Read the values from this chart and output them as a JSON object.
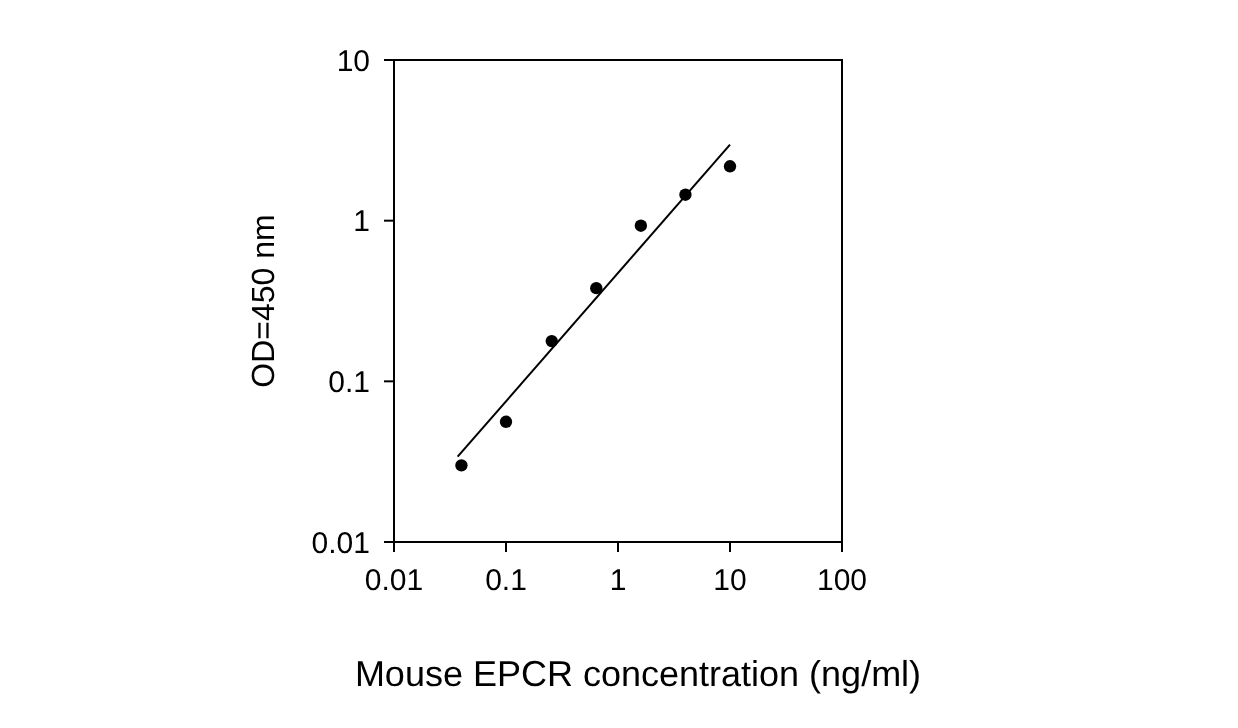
{
  "chart_data": {
    "type": "scatter",
    "xlabel": "Mouse EPCR concentration (ng/ml)",
    "ylabel": "OD=450 nm",
    "log": "xy",
    "xlim": [
      0.01,
      100
    ],
    "ylim": [
      0.01,
      10
    ],
    "xticks": [
      0.01,
      0.1,
      1,
      10,
      100
    ],
    "yticks": [
      0.01,
      0.1,
      1,
      10
    ],
    "grid": false,
    "marker": "circle",
    "series": [
      {
        "color": "#000000",
        "x": [
          0.04,
          0.1,
          0.256,
          0.64,
          1.6,
          4,
          10
        ],
        "values": [
          0.03,
          0.056,
          0.178,
          0.38,
          0.93,
          1.45,
          2.18
        ]
      },
      {
        "type": "line",
        "color": "#000000",
        "marker": "none",
        "x": [
          0.037,
          10
        ],
        "values": [
          0.034,
          2.97
        ]
      }
    ]
  }
}
